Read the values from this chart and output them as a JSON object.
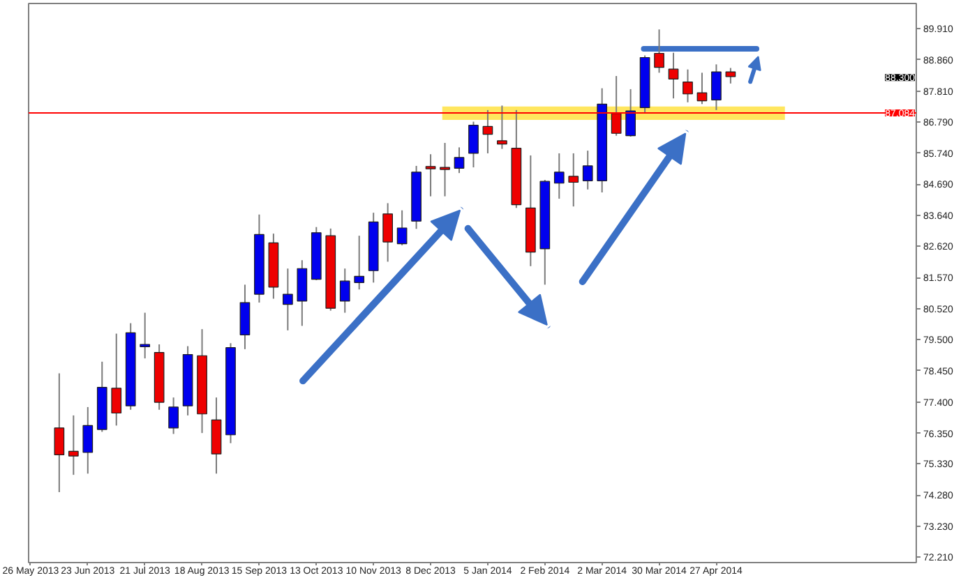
{
  "chart_data": {
    "type": "candlestick",
    "x": [
      "2013-06-09",
      "2013-06-16",
      "2013-06-23",
      "2013-06-30",
      "2013-07-07",
      "2013-07-14",
      "2013-07-21",
      "2013-07-28",
      "2013-08-04",
      "2013-08-11",
      "2013-08-18",
      "2013-08-25",
      "2013-09-01",
      "2013-09-08",
      "2013-09-15",
      "2013-09-22",
      "2013-09-29",
      "2013-10-06",
      "2013-10-13",
      "2013-10-20",
      "2013-10-27",
      "2013-11-03",
      "2013-11-10",
      "2013-11-17",
      "2013-11-24",
      "2013-12-01",
      "2013-12-08",
      "2013-12-15",
      "2013-12-22",
      "2013-12-29",
      "2014-01-05",
      "2014-01-12",
      "2014-01-19",
      "2014-01-26",
      "2014-02-02",
      "2014-02-09",
      "2014-02-16",
      "2014-02-23",
      "2014-03-02",
      "2014-03-09",
      "2014-03-16",
      "2014-03-23",
      "2014-03-30",
      "2014-04-06",
      "2014-04-13",
      "2014-04-20",
      "2014-04-27",
      "2014-05-04"
    ],
    "ohlc": [
      [
        76.53,
        78.36,
        74.38,
        75.63
      ],
      [
        75.75,
        76.95,
        74.96,
        75.59
      ],
      [
        75.71,
        77.23,
        75.0,
        76.61
      ],
      [
        76.48,
        78.75,
        76.4,
        77.89
      ],
      [
        77.86,
        79.69,
        76.61,
        77.03
      ],
      [
        77.27,
        80.04,
        77.14,
        79.72
      ],
      [
        79.25,
        80.39,
        78.86,
        79.33
      ],
      [
        79.06,
        79.33,
        77.14,
        77.39
      ],
      [
        76.53,
        77.55,
        76.33,
        77.23
      ],
      [
        77.27,
        79.27,
        76.95,
        78.99
      ],
      [
        78.95,
        79.84,
        76.36,
        77.0
      ],
      [
        76.8,
        77.55,
        75.0,
        75.66
      ],
      [
        76.3,
        79.37,
        76.02,
        79.22
      ],
      [
        79.65,
        81.33,
        79.17,
        80.73
      ],
      [
        81.01,
        83.68,
        80.73,
        83.01
      ],
      [
        82.73,
        83.04,
        80.86,
        81.25
      ],
      [
        80.67,
        81.87,
        79.8,
        81.01
      ],
      [
        80.78,
        82.15,
        79.95,
        81.87
      ],
      [
        81.51,
        83.26,
        81.48,
        83.07
      ],
      [
        82.97,
        83.21,
        80.46,
        80.54
      ],
      [
        80.78,
        81.87,
        80.39,
        81.45
      ],
      [
        81.4,
        82.97,
        81.17,
        81.61
      ],
      [
        81.8,
        83.74,
        81.4,
        83.43
      ],
      [
        83.7,
        84.06,
        82.1,
        82.76
      ],
      [
        82.7,
        83.82,
        82.65,
        83.23
      ],
      [
        83.46,
        85.31,
        83.2,
        85.1
      ],
      [
        85.29,
        85.7,
        84.29,
        85.21
      ],
      [
        85.26,
        86.08,
        84.29,
        85.19
      ],
      [
        85.23,
        85.93,
        85.07,
        85.59
      ],
      [
        85.73,
        86.79,
        85.26,
        86.67
      ],
      [
        86.63,
        87.18,
        85.73,
        86.37
      ],
      [
        86.15,
        87.33,
        85.88,
        86.04
      ],
      [
        85.9,
        87.18,
        83.9,
        84.01
      ],
      [
        83.9,
        85.66,
        81.95,
        82.42
      ],
      [
        82.53,
        84.84,
        81.33,
        84.79
      ],
      [
        84.73,
        85.73,
        84.21,
        85.1
      ],
      [
        84.96,
        85.73,
        83.95,
        84.76
      ],
      [
        84.81,
        85.82,
        84.52,
        85.31
      ],
      [
        84.81,
        87.91,
        84.42,
        87.38
      ],
      [
        87.07,
        88.32,
        86.32,
        86.4
      ],
      [
        86.32,
        87.88,
        86.29,
        87.15
      ],
      [
        87.26,
        89.01,
        87.07,
        88.94
      ],
      [
        89.08,
        89.88,
        88.43,
        88.61
      ],
      [
        88.55,
        89.1,
        87.57,
        88.22
      ],
      [
        88.12,
        88.54,
        87.44,
        87.72
      ],
      [
        87.76,
        88.43,
        87.38,
        87.49
      ],
      [
        87.52,
        88.71,
        87.18,
        88.46
      ],
      [
        88.46,
        88.59,
        88.07,
        88.3
      ]
    ],
    "colors": [
      "#ee0000",
      "#ee0000",
      "#0000ee",
      "#0000ee",
      "#ee0000",
      "#0000ee",
      "#0000ee",
      "#ee0000",
      "#0000ee",
      "#0000ee",
      "#ee0000",
      "#ee0000",
      "#0000ee",
      "#0000ee",
      "#0000ee",
      "#ee0000",
      "#0000ee",
      "#0000ee",
      "#0000ee",
      "#ee0000",
      "#0000ee",
      "#0000ee",
      "#0000ee",
      "#ee0000",
      "#0000ee",
      "#0000ee",
      "#ee0000",
      "#ee0000",
      "#0000ee",
      "#0000ee",
      "#ee0000",
      "#ee0000",
      "#ee0000",
      "#ee0000",
      "#0000ee",
      "#0000ee",
      "#ee0000",
      "#0000ee",
      "#0000ee",
      "#ee0000",
      "#0000ee",
      "#0000ee",
      "#ee0000",
      "#ee0000",
      "#ee0000",
      "#ee0000",
      "#0000ee",
      "#ee0000"
    ],
    "xlim": [
      "2013-05-25",
      "2014-08-03"
    ],
    "xticks": [
      {
        "value": "2013-05-26",
        "label": "26 May 2013"
      },
      {
        "value": "2013-06-23",
        "label": "23 Jun 2013"
      },
      {
        "value": "2013-07-21",
        "label": "21 Jul 2013"
      },
      {
        "value": "2013-08-18",
        "label": "18 Aug 2013"
      },
      {
        "value": "2013-09-15",
        "label": "15 Sep 2013"
      },
      {
        "value": "2013-10-13",
        "label": "13 Oct 2013"
      },
      {
        "value": "2013-11-10",
        "label": "10 Nov 2013"
      },
      {
        "value": "2013-12-08",
        "label": "8 Dec 2013"
      },
      {
        "value": "2014-01-05",
        "label": "5 Jan 2014"
      },
      {
        "value": "2014-02-02",
        "label": "2 Feb 2014"
      },
      {
        "value": "2014-03-02",
        "label": "2 Mar 2014"
      },
      {
        "value": "2014-03-30",
        "label": "30 Mar 2014"
      },
      {
        "value": "2014-04-27",
        "label": "27 Apr 2014"
      }
    ],
    "ylim": [
      72.02,
      90.75
    ],
    "yticks": [
      {
        "value": 89.91,
        "label": "89.910"
      },
      {
        "value": 88.86,
        "label": "88.860"
      },
      {
        "value": 87.81,
        "label": "87.810"
      },
      {
        "value": 86.79,
        "label": "86.790"
      },
      {
        "value": 85.74,
        "label": "85.740"
      },
      {
        "value": 84.69,
        "label": "84.690"
      },
      {
        "value": 83.64,
        "label": "83.640"
      },
      {
        "value": 82.62,
        "label": "82.620"
      },
      {
        "value": 81.57,
        "label": "81.570"
      },
      {
        "value": 80.52,
        "label": "80.520"
      },
      {
        "value": 79.5,
        "label": "79.500"
      },
      {
        "value": 78.45,
        "label": "78.450"
      },
      {
        "value": 77.4,
        "label": "77.400"
      },
      {
        "value": 76.35,
        "label": "76.350"
      },
      {
        "value": 75.33,
        "label": "75.330"
      },
      {
        "value": 74.28,
        "label": "74.280"
      },
      {
        "value": 73.23,
        "label": "73.230"
      },
      {
        "value": 72.21,
        "label": "72.210"
      }
    ],
    "ref_lines": [
      {
        "axis": "y",
        "value": 87.084,
        "label": "87.084",
        "color": "#ff0000"
      },
      {
        "axis": "y",
        "value": 89.23,
        "color": "#3b70c6"
      }
    ],
    "bands": [
      {
        "axis": "y",
        "from": 86.85,
        "to": 87.3,
        "color": "#ffe34d"
      }
    ],
    "annotations": [
      "88.300"
    ]
  }
}
